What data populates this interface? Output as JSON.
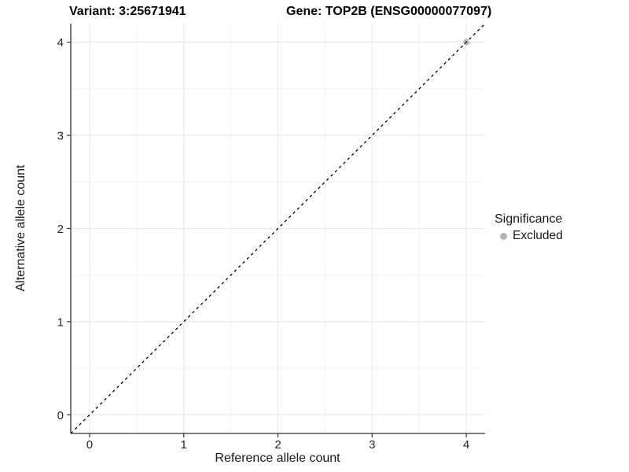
{
  "chart_data": {
    "type": "scatter",
    "title_left": "Variant: 3:25671941",
    "title_right": "Gene: TOP2B (ENSG00000077097)",
    "xlabel": "Reference allele count",
    "ylabel": "Alternative allele count",
    "x_range": [
      -0.2,
      4.2
    ],
    "y_range": [
      -0.2,
      4.2
    ],
    "x_ticks": [
      0,
      1,
      2,
      3,
      4
    ],
    "y_ticks": [
      0,
      1,
      2,
      3,
      4
    ],
    "x_minor": [
      0.5,
      1.5,
      2.5,
      3.5
    ],
    "y_minor": [
      0.5,
      1.5,
      2.5,
      3.5
    ],
    "grid": {
      "major": true,
      "minor": true
    },
    "identity_line": {
      "style": "dashed",
      "slope": 1,
      "intercept": 0,
      "color": "#000000"
    },
    "series": [
      {
        "name": "Excluded",
        "color": "#b4b4b4",
        "points": [
          {
            "x": 4,
            "y": 4
          }
        ]
      }
    ],
    "legend": {
      "title": "Significance",
      "position": "right",
      "items": [
        {
          "label": "Excluded",
          "color": "#b4b4b4",
          "marker": "circle"
        }
      ]
    },
    "colors": {
      "background": "#ffffff",
      "grid_major": "#e8e8e8",
      "grid_minor": "#f2f2f2",
      "axis_line": "#333333",
      "tick_mark": "#333333",
      "tick_text": "#262626",
      "title_text": "#000000"
    }
  }
}
